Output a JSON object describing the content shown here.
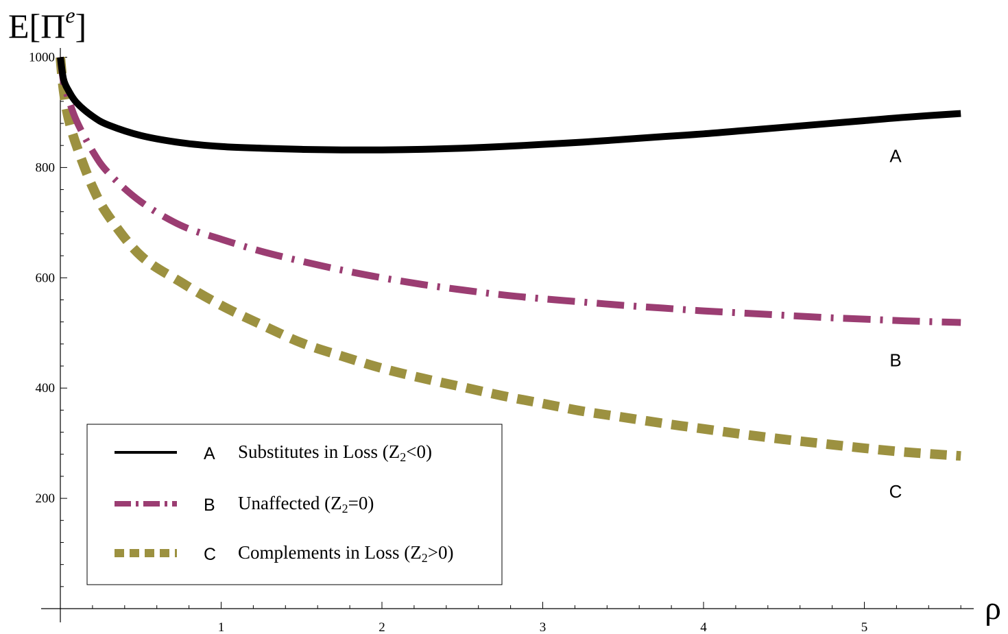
{
  "chart_data": {
    "type": "line",
    "title": "",
    "ylabel": {
      "base": "E[Π",
      "sup": "e",
      "close": "]"
    },
    "xlabel": "ρ",
    "xlim": [
      0,
      5.6
    ],
    "ylim": [
      0,
      1000
    ],
    "x_ticks": [
      1,
      2,
      3,
      4,
      5
    ],
    "y_ticks": [
      200,
      400,
      600,
      800,
      1000
    ],
    "grid": false,
    "legend_position": "bottom-left",
    "series": [
      {
        "letter": "A",
        "name": "Substitutes in Loss (Z",
        "name_sub": "2",
        "name_end": "<0)",
        "style": "solid",
        "color": "#000000",
        "x": [
          0,
          0.02,
          0.05,
          0.1,
          0.2,
          0.3,
          0.5,
          0.75,
          1.0,
          1.25,
          1.5,
          1.75,
          2.0,
          2.25,
          2.5,
          2.75,
          3.0,
          3.25,
          3.5,
          3.75,
          4.0,
          4.25,
          4.5,
          4.75,
          5.0,
          5.25,
          5.6
        ],
        "y": [
          1000,
          960,
          940,
          918,
          893,
          877,
          858,
          845,
          838,
          835,
          833,
          832,
          832,
          833,
          835,
          838,
          842,
          846,
          851,
          856,
          861,
          867,
          873,
          879,
          885,
          891,
          898
        ]
      },
      {
        "letter": "B",
        "name": "Unaffected (Z",
        "name_sub": "2",
        "name_end": "=0)",
        "style": "dashdot",
        "color": "#9b3d72",
        "x": [
          0,
          0.02,
          0.05,
          0.1,
          0.2,
          0.3,
          0.5,
          0.75,
          1.0,
          1.25,
          1.5,
          1.75,
          2.0,
          2.25,
          2.5,
          2.75,
          3.0,
          3.25,
          3.5,
          3.75,
          4.0,
          4.25,
          4.5,
          4.75,
          5.0,
          5.25,
          5.6
        ],
        "y": [
          1000,
          955,
          925,
          885,
          830,
          790,
          738,
          695,
          670,
          648,
          630,
          614,
          600,
          588,
          578,
          569,
          562,
          556,
          550,
          545,
          540,
          536,
          532,
          528,
          525,
          522,
          519
        ]
      },
      {
        "letter": "C",
        "name": "Complements in Loss (Z",
        "name_sub": "2",
        "name_end": ">0)",
        "style": "dashed",
        "color": "#9c9140",
        "x": [
          0,
          0.02,
          0.05,
          0.1,
          0.2,
          0.3,
          0.5,
          0.75,
          1.0,
          1.25,
          1.5,
          1.75,
          2.0,
          2.25,
          2.5,
          2.75,
          3.0,
          3.25,
          3.5,
          3.75,
          4.0,
          4.25,
          4.5,
          4.75,
          5.0,
          5.25,
          5.6
        ],
        "y": [
          1000,
          940,
          890,
          840,
          765,
          712,
          640,
          592,
          550,
          515,
          482,
          458,
          436,
          418,
          402,
          386,
          372,
          358,
          347,
          336,
          326,
          316,
          307,
          299,
          291,
          284,
          277
        ]
      }
    ]
  }
}
